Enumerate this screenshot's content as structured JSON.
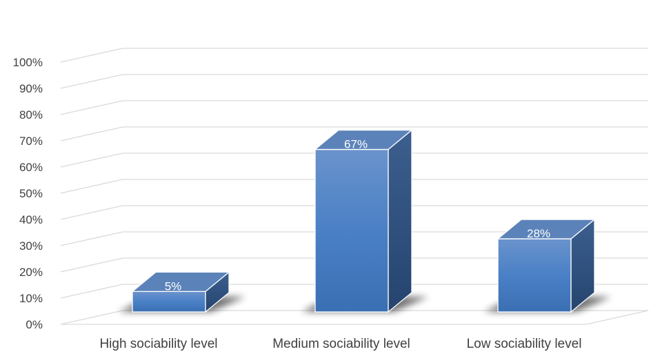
{
  "chart_data": {
    "type": "bar",
    "categories": [
      "High sociability level",
      "Medium sociability level",
      "Low sociability level"
    ],
    "values": [
      5,
      67,
      28
    ],
    "data_labels": [
      "5%",
      "67%",
      "28%"
    ],
    "ylim": [
      0,
      100
    ],
    "y_ticks": [
      "0%",
      "10%",
      "20%",
      "30%",
      "40%",
      "50%",
      "60%",
      "70%",
      "80%",
      "90%",
      "100%"
    ],
    "grid": true,
    "legend": "none",
    "style": "3d-column",
    "colors": {
      "bar_front": "#4a7ebf",
      "bar_top": "#5b83b9",
      "bar_side": "#2f507f",
      "grid": "#d9d9d9",
      "text": "#404040"
    }
  }
}
